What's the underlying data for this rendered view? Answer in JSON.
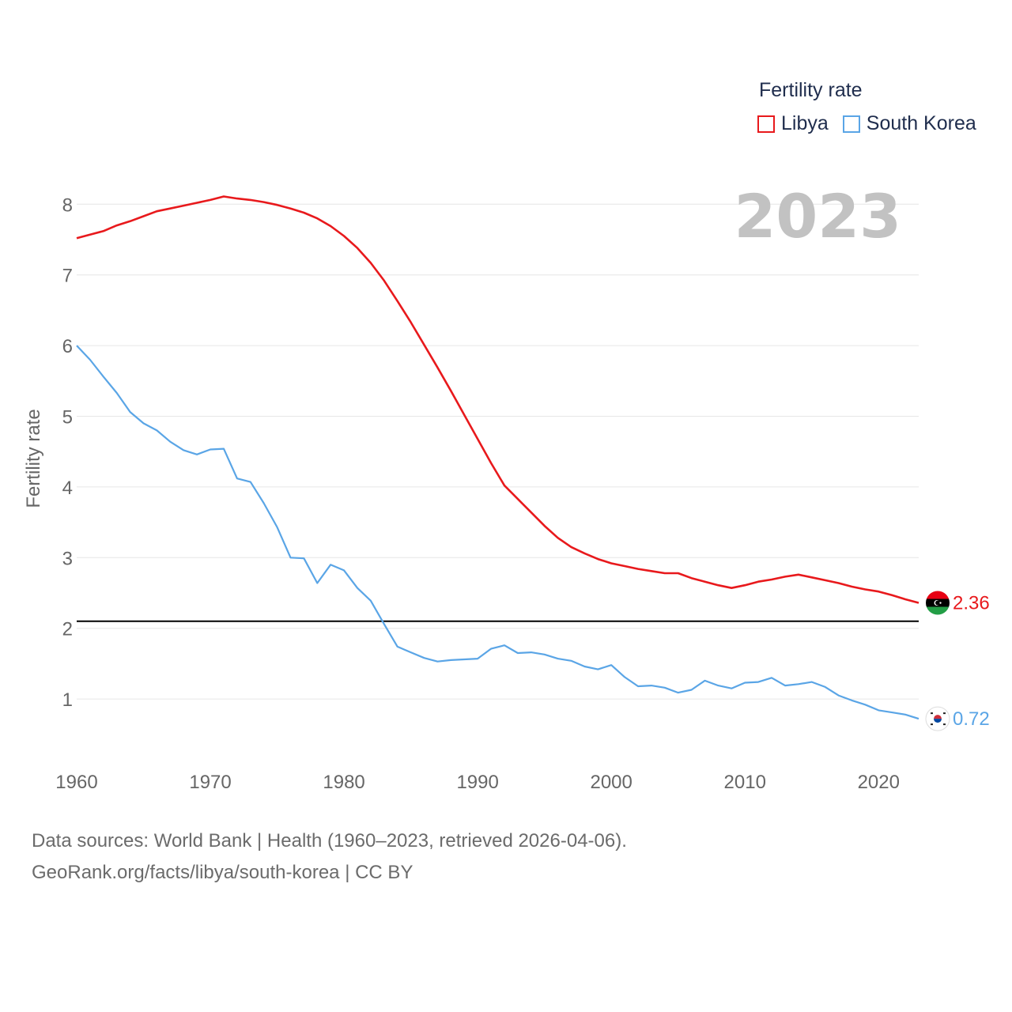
{
  "chart_data": {
    "type": "line",
    "ylabel": "Fertility rate",
    "xlabel": "",
    "xlim": [
      1960,
      2023
    ],
    "ylim": [
      0,
      8.5
    ],
    "x_ticks": [
      1960,
      1970,
      1980,
      1990,
      2000,
      2010,
      2020
    ],
    "y_ticks": [
      1,
      2,
      3,
      4,
      5,
      6,
      7,
      8
    ],
    "x_tick_labels": [
      "1960",
      "1970",
      "1980",
      "1990",
      "2000",
      "2010",
      "2020"
    ],
    "y_tick_labels": [
      "1",
      "2",
      "3",
      "4",
      "5",
      "6",
      "7",
      "8"
    ],
    "grid": true,
    "year_label": "2023",
    "reference_line": {
      "value": 2.1,
      "color": "#000000"
    },
    "x": [
      1960,
      1961,
      1962,
      1963,
      1964,
      1965,
      1966,
      1967,
      1968,
      1969,
      1970,
      1971,
      1972,
      1973,
      1974,
      1975,
      1976,
      1977,
      1978,
      1979,
      1980,
      1981,
      1982,
      1983,
      1984,
      1985,
      1986,
      1987,
      1988,
      1989,
      1990,
      1991,
      1992,
      1993,
      1994,
      1995,
      1996,
      1997,
      1998,
      1999,
      2000,
      2001,
      2002,
      2003,
      2004,
      2005,
      2006,
      2007,
      2008,
      2009,
      2010,
      2011,
      2012,
      2013,
      2014,
      2015,
      2016,
      2017,
      2018,
      2019,
      2020,
      2021,
      2022,
      2023
    ],
    "series": [
      {
        "name": "Libya",
        "color": "#e8191c",
        "end_label": "2.36",
        "values": [
          7.52,
          7.57,
          7.62,
          7.7,
          7.76,
          7.83,
          7.9,
          7.94,
          7.98,
          8.02,
          8.06,
          8.11,
          8.08,
          8.06,
          8.03,
          7.99,
          7.94,
          7.88,
          7.8,
          7.69,
          7.55,
          7.38,
          7.17,
          6.92,
          6.63,
          6.33,
          6.01,
          5.69,
          5.36,
          5.02,
          4.68,
          4.34,
          4.02,
          3.83,
          3.64,
          3.45,
          3.28,
          3.15,
          3.06,
          2.98,
          2.92,
          2.88,
          2.84,
          2.81,
          2.78,
          2.78,
          2.71,
          2.66,
          2.61,
          2.57,
          2.61,
          2.66,
          2.69,
          2.73,
          2.76,
          2.72,
          2.68,
          2.64,
          2.59,
          2.55,
          2.52,
          2.47,
          2.41,
          2.36
        ]
      },
      {
        "name": "South Korea",
        "color": "#5aa5e6",
        "end_label": "0.72",
        "values": [
          6.0,
          5.8,
          5.56,
          5.33,
          5.06,
          4.9,
          4.8,
          4.64,
          4.52,
          4.46,
          4.53,
          4.54,
          4.12,
          4.07,
          3.77,
          3.43,
          3.0,
          2.99,
          2.64,
          2.9,
          2.82,
          2.57,
          2.39,
          2.06,
          1.74,
          1.66,
          1.58,
          1.53,
          1.55,
          1.56,
          1.57,
          1.71,
          1.76,
          1.65,
          1.66,
          1.63,
          1.57,
          1.54,
          1.46,
          1.42,
          1.48,
          1.31,
          1.18,
          1.19,
          1.16,
          1.09,
          1.13,
          1.26,
          1.19,
          1.15,
          1.23,
          1.24,
          1.3,
          1.19,
          1.21,
          1.24,
          1.17,
          1.05,
          0.98,
          0.92,
          0.84,
          0.81,
          0.78,
          0.72
        ]
      }
    ]
  },
  "legend": {
    "title": "Fertility rate",
    "items": [
      "Libya",
      "South Korea"
    ]
  },
  "footer": {
    "line1": "Data sources: World Bank | Health (1960–2023, retrieved 2026-04-06).",
    "line2": "GeoRank.org/facts/libya/south-korea | CC BY"
  }
}
